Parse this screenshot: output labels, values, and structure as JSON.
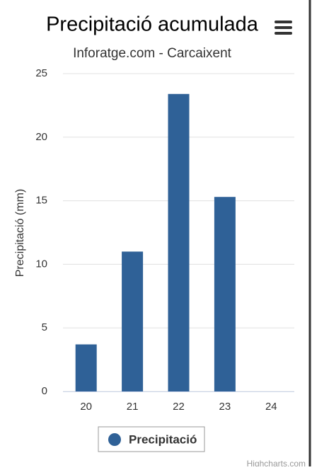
{
  "chart_data": {
    "type": "bar",
    "title": "Precipitació acumulada",
    "subtitle": "Inforatge.com - Carcaixent",
    "y_label": "Precipitació (mm)",
    "categories": [
      "20",
      "21",
      "22",
      "23",
      "24"
    ],
    "series": [
      {
        "name": "Precipitació",
        "color": "#2f6197",
        "values": [
          3.7,
          11.0,
          23.4,
          15.3,
          0
        ]
      }
    ],
    "ylim": [
      0,
      25
    ],
    "yticks": [
      0,
      5,
      10,
      15,
      20,
      25
    ],
    "grid": true,
    "legend": "bottom",
    "credits": "Highcharts.com"
  }
}
